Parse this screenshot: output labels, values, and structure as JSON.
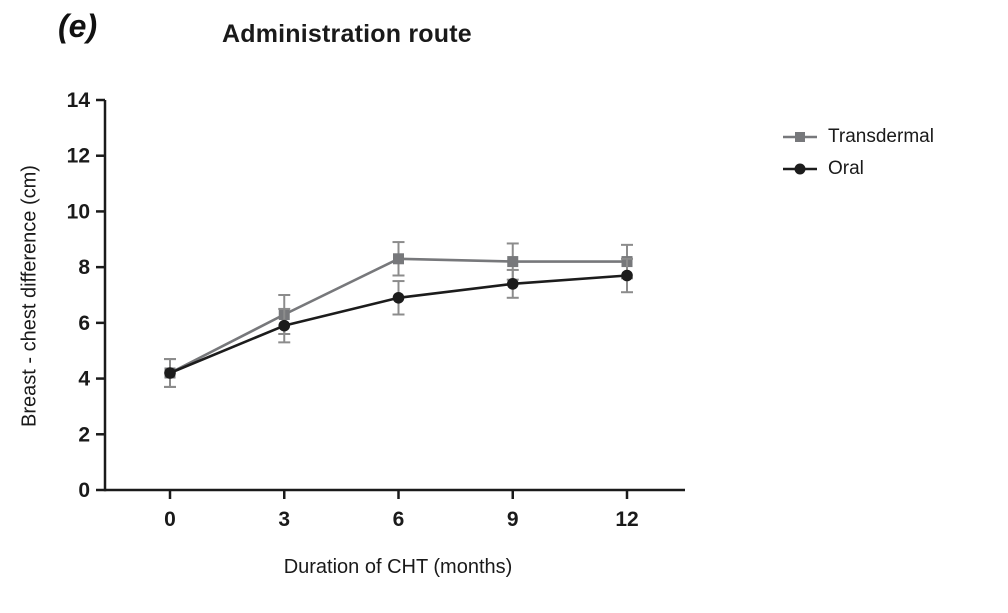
{
  "panel_label": "(e)",
  "chart_data": {
    "type": "line",
    "title": "Administration route",
    "xlabel": "Duration of CHT (months)",
    "ylabel": "Breast - chest difference (cm)",
    "x": [
      0,
      3,
      6,
      9,
      12
    ],
    "xticks": [
      0,
      3,
      6,
      9,
      12
    ],
    "yticks": [
      0,
      2,
      4,
      6,
      8,
      10,
      12,
      14
    ],
    "ylim": [
      0,
      14
    ],
    "grid": false,
    "legend_position": "right",
    "error_bars": true,
    "series": [
      {
        "name": "Transdermal",
        "marker": "square",
        "color": "#77787b",
        "error_color": "#8c8c8c",
        "values": [
          4.2,
          6.3,
          8.3,
          8.2,
          8.2
        ],
        "errors": [
          0.5,
          0.7,
          0.6,
          0.65,
          0.6
        ]
      },
      {
        "name": "Oral",
        "marker": "circle",
        "color": "#1c1c1c",
        "error_color": "#8c8c8c",
        "values": [
          4.2,
          5.9,
          6.9,
          7.4,
          7.7
        ],
        "errors": [
          0.5,
          0.6,
          0.6,
          0.5,
          0.6
        ]
      }
    ]
  }
}
